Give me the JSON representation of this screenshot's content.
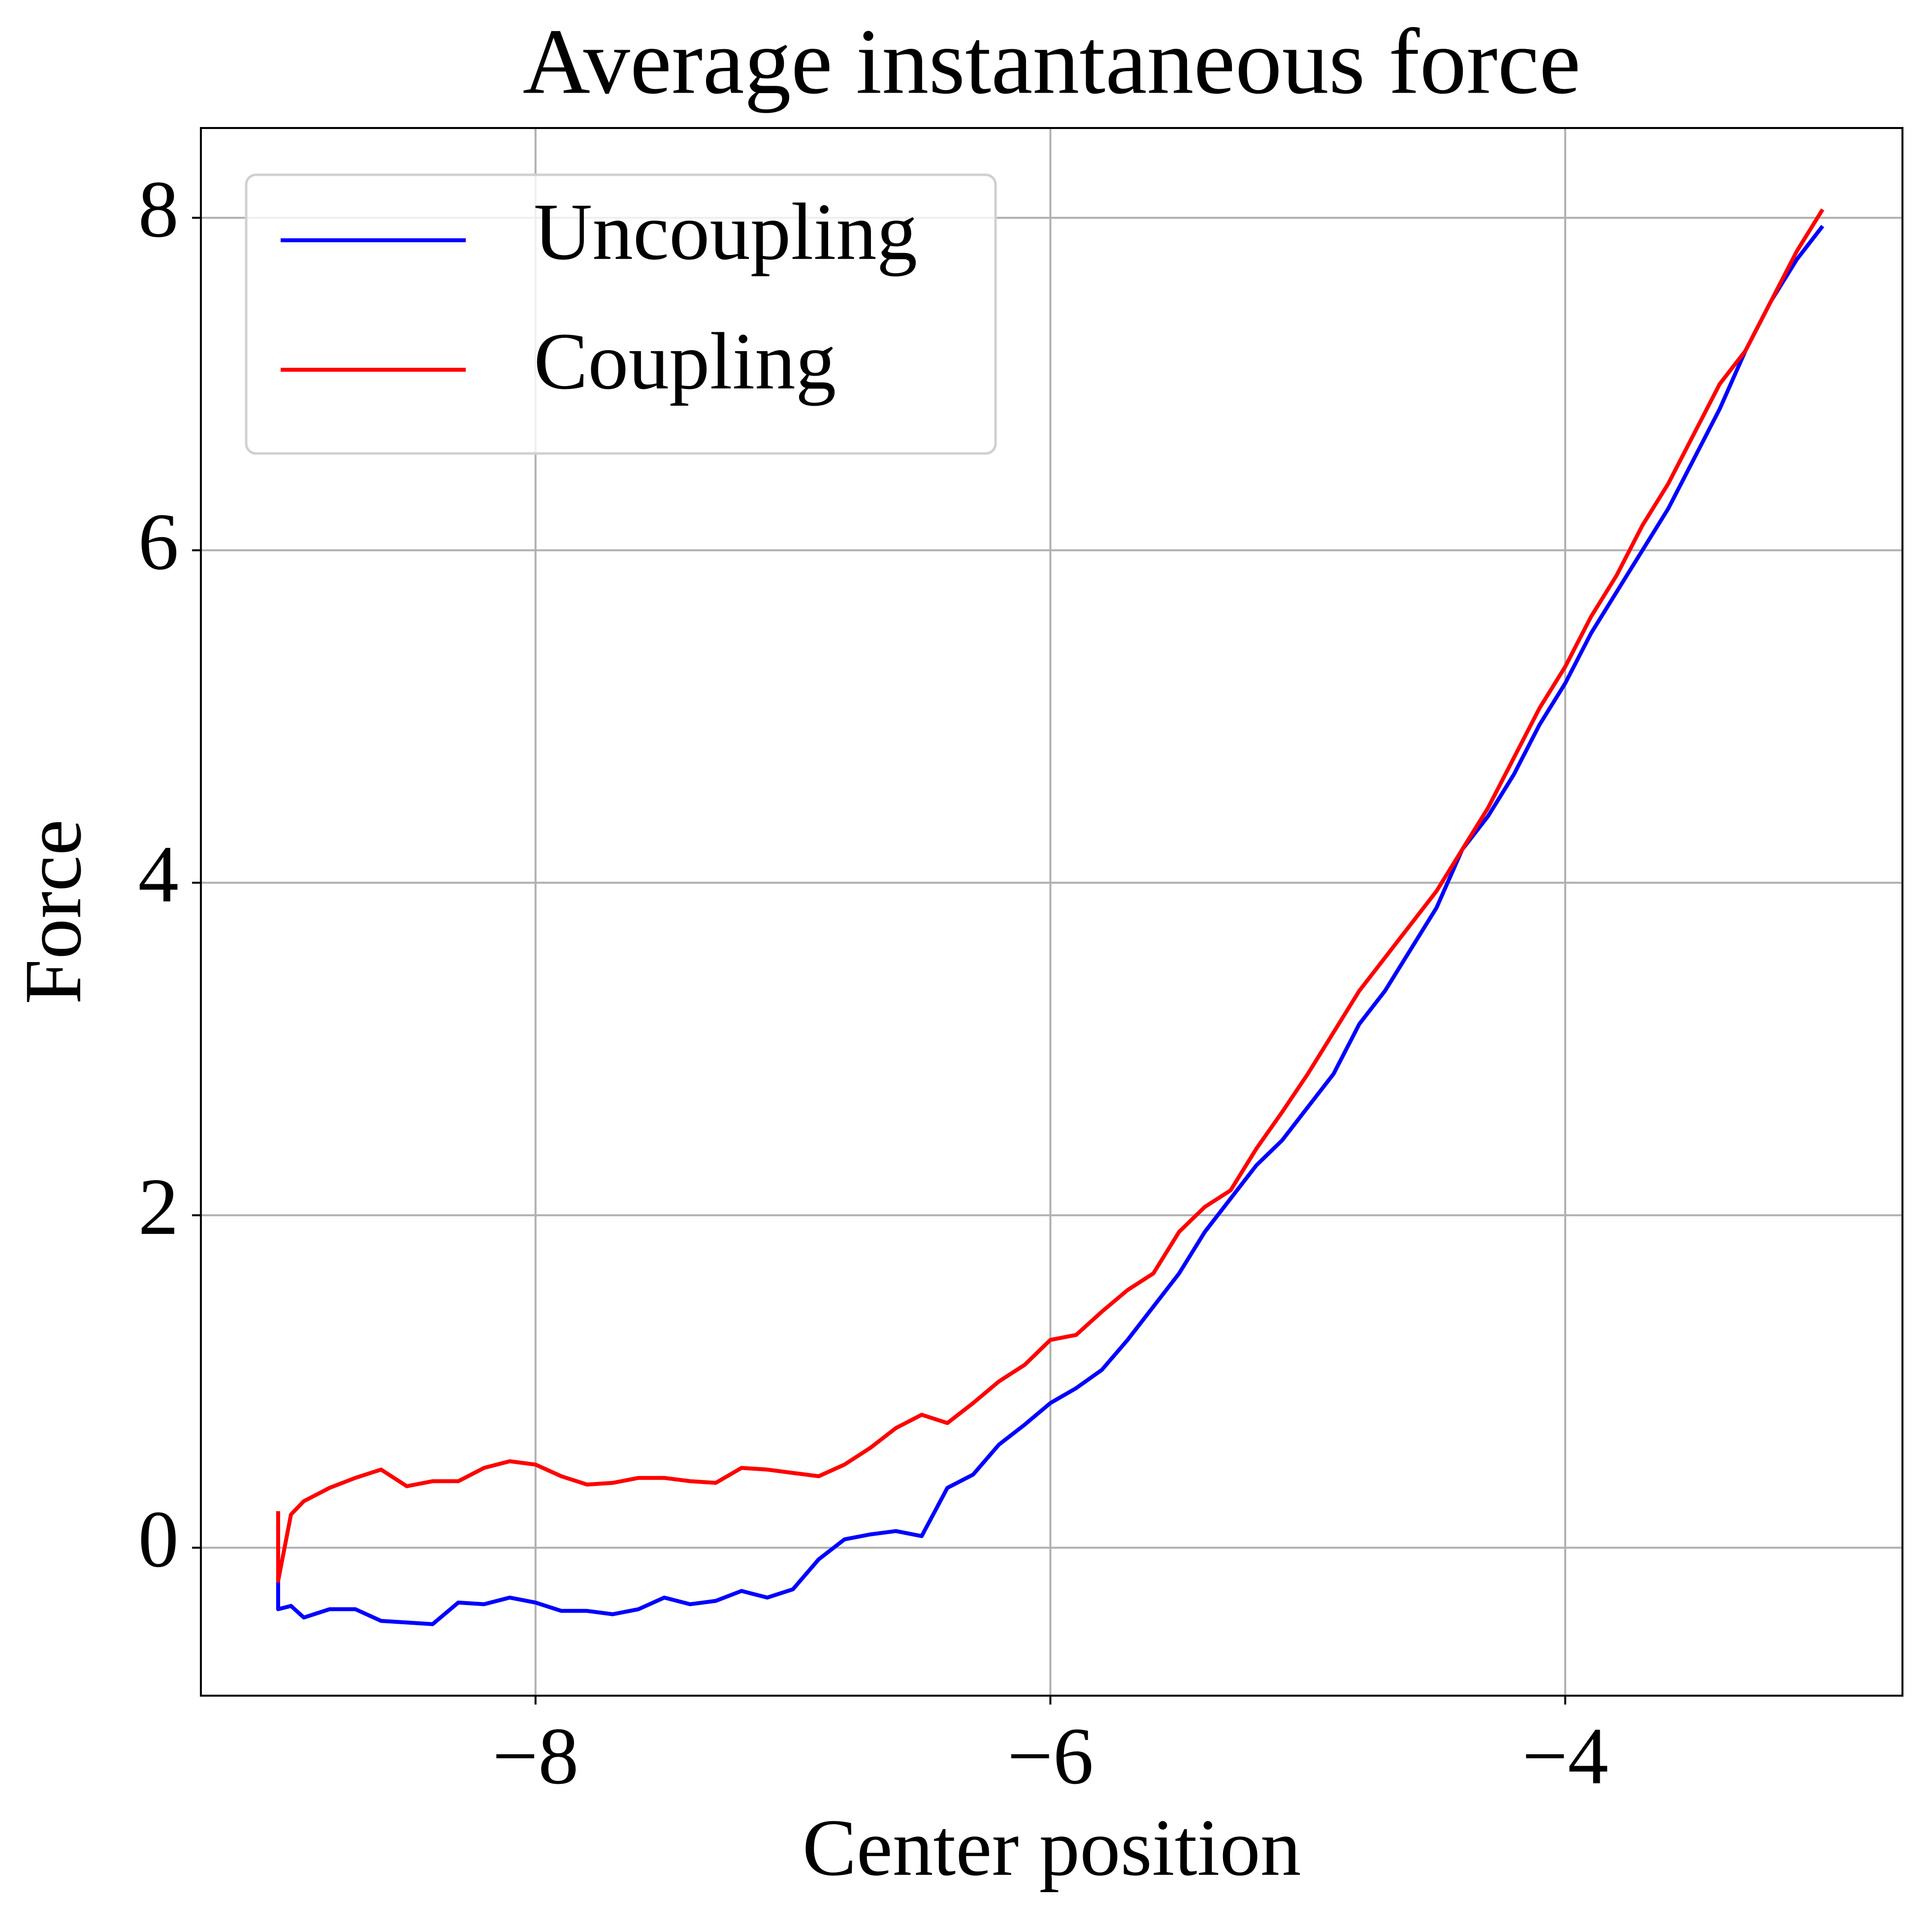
{
  "chart_data": {
    "type": "line",
    "title": "Average instantaneous force",
    "x_label": "Center position",
    "y_label": "Force",
    "x": [
      -9.0,
      -9.0,
      -8.95,
      -8.9,
      -8.8,
      -8.7,
      -8.6,
      -8.5,
      -8.4,
      -8.3,
      -8.2,
      -8.1,
      -8.0,
      -7.9,
      -7.8,
      -7.7,
      -7.6,
      -7.5,
      -7.4,
      -7.3,
      -7.2,
      -7.1,
      -7.0,
      -6.9,
      -6.8,
      -6.7,
      -6.6,
      -6.5,
      -6.4,
      -6.3,
      -6.2,
      -6.1,
      -6.0,
      -5.9,
      -5.8,
      -5.7,
      -5.6,
      -5.5,
      -5.4,
      -5.3,
      -5.2,
      -5.1,
      -5.0,
      -4.9,
      -4.8,
      -4.7,
      -4.6,
      -4.5,
      -4.4,
      -4.3,
      -4.2,
      -4.1,
      -4.0,
      -3.9,
      -3.8,
      -3.7,
      -3.6,
      -3.5,
      -3.4,
      -3.3,
      -3.2,
      -3.1,
      -3.0
    ],
    "series": [
      {
        "name": "Uncoupling",
        "color": "#0000ff",
        "values": [
          -0.2,
          -0.37,
          -0.35,
          -0.42,
          -0.37,
          -0.37,
          -0.44,
          -0.45,
          -0.46,
          -0.33,
          -0.34,
          -0.3,
          -0.33,
          -0.38,
          -0.38,
          -0.4,
          -0.37,
          -0.3,
          -0.34,
          -0.32,
          -0.26,
          -0.3,
          -0.25,
          -0.07,
          0.05,
          0.08,
          0.1,
          0.07,
          0.36,
          0.44,
          0.62,
          0.74,
          0.87,
          0.96,
          1.07,
          1.25,
          1.45,
          1.65,
          1.9,
          2.1,
          2.3,
          2.45,
          2.65,
          2.85,
          3.15,
          3.35,
          3.6,
          3.85,
          4.2,
          4.4,
          4.65,
          4.95,
          5.2,
          5.5,
          5.75,
          6.0,
          6.25,
          6.55,
          6.85,
          7.2,
          7.5,
          7.75,
          7.95
        ]
      },
      {
        "name": "Coupling",
        "color": "#ff0000",
        "values": [
          0.22,
          -0.2,
          0.2,
          0.28,
          0.36,
          0.42,
          0.47,
          0.37,
          0.4,
          0.4,
          0.48,
          0.52,
          0.5,
          0.43,
          0.38,
          0.39,
          0.42,
          0.42,
          0.4,
          0.39,
          0.48,
          0.47,
          0.45,
          0.43,
          0.5,
          0.6,
          0.72,
          0.8,
          0.75,
          0.87,
          1.0,
          1.1,
          1.25,
          1.28,
          1.42,
          1.55,
          1.65,
          1.9,
          2.05,
          2.15,
          2.4,
          2.62,
          2.85,
          3.1,
          3.35,
          3.55,
          3.75,
          3.95,
          4.2,
          4.45,
          4.75,
          5.05,
          5.3,
          5.6,
          5.85,
          6.15,
          6.4,
          6.7,
          7.0,
          7.2,
          7.5,
          7.8,
          8.05
        ]
      }
    ],
    "xlim": [
      -9.3,
      -2.69
    ],
    "ylim": [
      -0.89,
      8.54
    ],
    "xticks": [
      {
        "value": -8,
        "label": "−8"
      },
      {
        "value": -6,
        "label": "−6"
      },
      {
        "value": -4,
        "label": "−4"
      }
    ],
    "yticks": [
      0,
      2,
      4,
      6,
      8
    ],
    "grid": true,
    "legend": "upper left"
  }
}
